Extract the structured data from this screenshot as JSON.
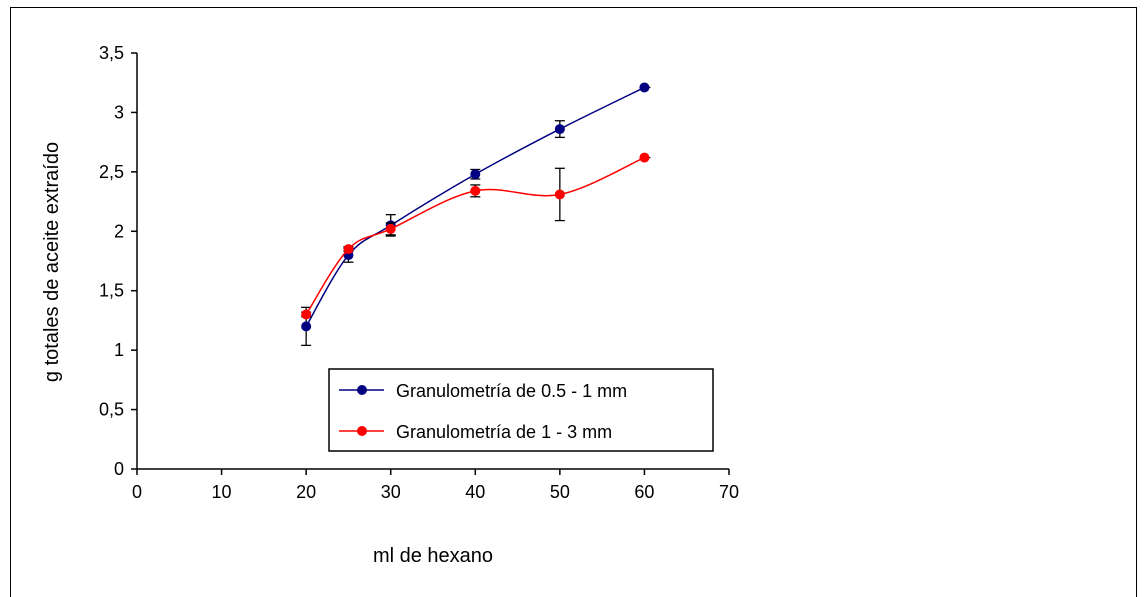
{
  "chart_data": {
    "type": "line",
    "xlabel": "ml de hexano",
    "ylabel": "g totales de aceite extraído",
    "xlim": [
      0,
      70
    ],
    "ylim": [
      0,
      3.5
    ],
    "xticks": [
      "0",
      "10",
      "20",
      "30",
      "40",
      "50",
      "60",
      "70"
    ],
    "yticks": [
      "0",
      "0,5",
      "1",
      "1,5",
      "2",
      "2,5",
      "3",
      "3,5"
    ],
    "grid": false,
    "legend_position": "bottom-center inside plot",
    "series": [
      {
        "name": "Granulometría de 0.5 - 1 mm",
        "color": "#000080",
        "x": [
          20,
          25,
          30,
          40,
          50,
          60
        ],
        "y": [
          1.2,
          1.8,
          2.05,
          2.48,
          2.86,
          3.21
        ],
        "error": [
          0.16,
          0.06,
          0.09,
          0.04,
          0.07,
          0.0
        ]
      },
      {
        "name": "Granulometría de 1 - 3 mm",
        "color": "#ff0000",
        "x": [
          20,
          25,
          30,
          40,
          50,
          60
        ],
        "y": [
          1.3,
          1.85,
          2.02,
          2.34,
          2.31,
          2.62
        ],
        "error": [
          0.02,
          0.02,
          0.05,
          0.05,
          0.22,
          0.0
        ]
      }
    ]
  }
}
